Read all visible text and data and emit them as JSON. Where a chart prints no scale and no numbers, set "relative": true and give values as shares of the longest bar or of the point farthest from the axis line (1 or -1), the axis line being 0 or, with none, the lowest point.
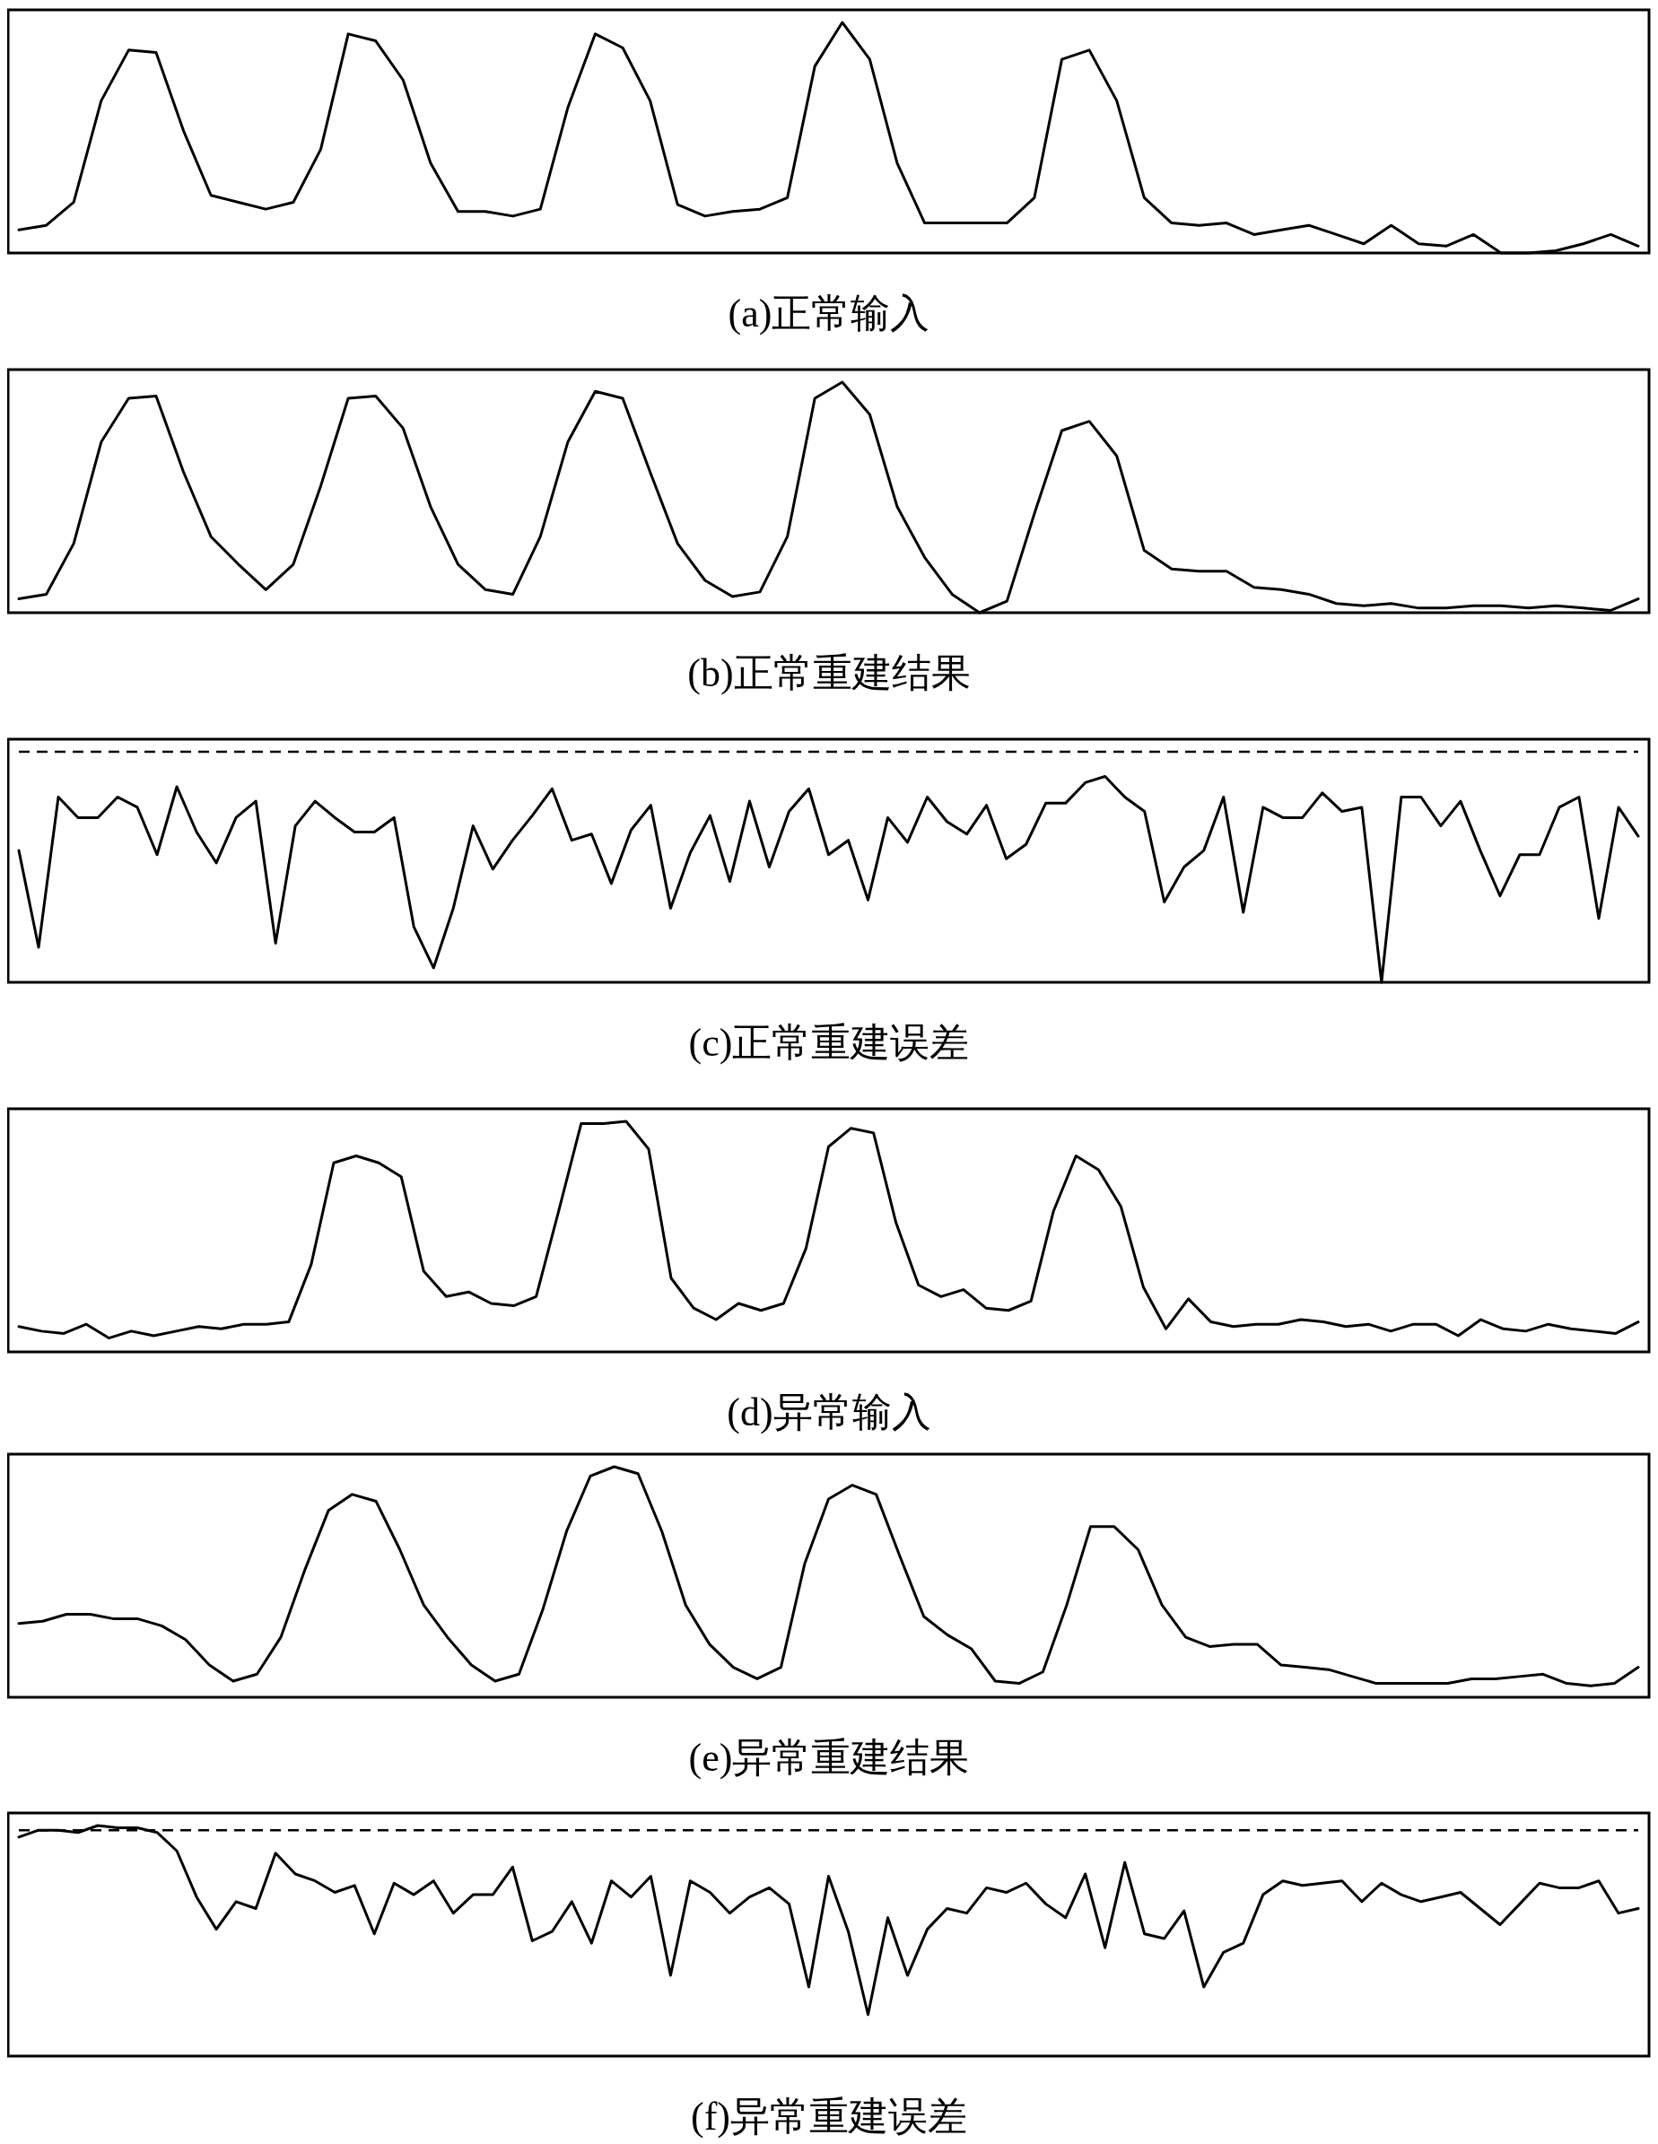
{
  "chart_data": [
    {
      "type": "line",
      "xlabel": "(a)正常输入",
      "relative": true,
      "tick_labels": false,
      "line_style": "solid",
      "categories": [
        null,
        null,
        null,
        null,
        null,
        null,
        null,
        null,
        null,
        null,
        null,
        null,
        null,
        null,
        null,
        null,
        null,
        null,
        null,
        null,
        null,
        null,
        null,
        null,
        null,
        null,
        null,
        null,
        null,
        null,
        null,
        null,
        null,
        null,
        null,
        null,
        null,
        null,
        null,
        null,
        null,
        null,
        null,
        null,
        null,
        null,
        null,
        null,
        null,
        null,
        null,
        null,
        null,
        null,
        null,
        null,
        null,
        null,
        null,
        null
      ],
      "series": [
        {
          "color": "#000000",
          "values": [
            0.1,
            0.12,
            0.22,
            0.66,
            0.88,
            0.87,
            0.53,
            0.25,
            0.22,
            0.19,
            0.22,
            0.45,
            0.95,
            0.92,
            0.75,
            0.39,
            0.18,
            0.18,
            0.16,
            0.19,
            0.63,
            0.95,
            0.89,
            0.66,
            0.21,
            0.16,
            0.18,
            0.19,
            0.24,
            0.81,
            1,
            0.84,
            0.39,
            0.13,
            0.13,
            0.13,
            0.13,
            0.24,
            0.84,
            0.88,
            0.66,
            0.24,
            0.13,
            0.12,
            0.13,
            0.08,
            0.1,
            0.12,
            0.08,
            0.04,
            0.12,
            0.04,
            0.03,
            0.08,
            0,
            0,
            0.01,
            0.04,
            0.08,
            0.03
          ]
        }
      ]
    },
    {
      "type": "line",
      "xlabel": "(b)正常重建结果",
      "relative": true,
      "tick_labels": false,
      "line_style": "solid",
      "categories": [
        null,
        null,
        null,
        null,
        null,
        null,
        null,
        null,
        null,
        null,
        null,
        null,
        null,
        null,
        null,
        null,
        null,
        null,
        null,
        null,
        null,
        null,
        null,
        null,
        null,
        null,
        null,
        null,
        null,
        null,
        null,
        null,
        null,
        null,
        null,
        null,
        null,
        null,
        null,
        null,
        null,
        null,
        null,
        null,
        null,
        null,
        null,
        null,
        null,
        null,
        null,
        null,
        null,
        null,
        null,
        null,
        null,
        null,
        null,
        null
      ],
      "series": [
        {
          "color": "#000000",
          "values": [
            0.06,
            0.08,
            0.3,
            0.74,
            0.93,
            0.94,
            0.61,
            0.33,
            0.21,
            0.1,
            0.21,
            0.55,
            0.93,
            0.94,
            0.8,
            0.46,
            0.21,
            0.1,
            0.08,
            0.33,
            0.74,
            0.96,
            0.93,
            0.61,
            0.3,
            0.14,
            0.07,
            0.09,
            0.33,
            0.93,
            1,
            0.86,
            0.46,
            0.24,
            0.08,
            0,
            0.05,
            0.43,
            0.79,
            0.83,
            0.68,
            0.27,
            0.19,
            0.18,
            0.18,
            0.11,
            0.1,
            0.08,
            0.04,
            0.03,
            0.04,
            0.02,
            0.02,
            0.03,
            0.03,
            0.02,
            0.03,
            0.02,
            0.01,
            0.06
          ]
        }
      ]
    },
    {
      "type": "line",
      "xlabel": "(c)正常重建误差",
      "relative": true,
      "tick_labels": false,
      "line_style": "solid",
      "ref_lines": [
        {
          "axis": "y",
          "value": 1.12,
          "line_style": "dashed",
          "color": "#000000"
        }
      ],
      "categories": [
        null,
        null,
        null,
        null,
        null,
        null,
        null,
        null,
        null,
        null,
        null,
        null,
        null,
        null,
        null,
        null,
        null,
        null,
        null,
        null,
        null,
        null,
        null,
        null,
        null,
        null,
        null,
        null,
        null,
        null,
        null,
        null,
        null,
        null,
        null,
        null,
        null,
        null,
        null,
        null,
        null,
        null,
        null,
        null,
        null,
        null,
        null,
        null,
        null,
        null,
        null,
        null,
        null,
        null,
        null,
        null,
        null,
        null,
        null,
        null,
        null,
        null,
        null,
        null,
        null,
        null,
        null,
        null,
        null,
        null,
        null,
        null,
        null,
        null,
        null,
        null,
        null,
        null,
        null,
        null,
        null,
        null,
        null
      ],
      "series": [
        {
          "color": "#000000",
          "values": [
            0.64,
            0.17,
            0.9,
            0.8,
            0.8,
            0.9,
            0.85,
            0.62,
            0.95,
            0.73,
            0.58,
            0.8,
            0.88,
            0.19,
            0.76,
            0.88,
            0.8,
            0.73,
            0.73,
            0.8,
            0.27,
            0.07,
            0.36,
            0.76,
            0.55,
            0.69,
            0.81,
            0.94,
            0.69,
            0.72,
            0.48,
            0.74,
            0.86,
            0.36,
            0.63,
            0.81,
            0.49,
            0.88,
            0.56,
            0.83,
            0.94,
            0.62,
            0.69,
            0.4,
            0.8,
            0.68,
            0.9,
            0.78,
            0.72,
            0.86,
            0.6,
            0.67,
            0.87,
            0.87,
            0.97,
            1,
            0.9,
            0.83,
            0.39,
            0.56,
            0.64,
            0.9,
            0.34,
            0.85,
            0.8,
            0.8,
            0.92,
            0.83,
            0.85,
            0,
            0.9,
            0.9,
            0.76,
            0.88,
            0.64,
            0.42,
            0.62,
            0.62,
            0.85,
            0.9,
            0.31,
            0.85,
            0.71
          ]
        }
      ]
    },
    {
      "type": "line",
      "xlabel": "(d)异常输入",
      "relative": true,
      "tick_labels": false,
      "line_style": "solid",
      "categories": [
        null,
        null,
        null,
        null,
        null,
        null,
        null,
        null,
        null,
        null,
        null,
        null,
        null,
        null,
        null,
        null,
        null,
        null,
        null,
        null,
        null,
        null,
        null,
        null,
        null,
        null,
        null,
        null,
        null,
        null,
        null,
        null,
        null,
        null,
        null,
        null,
        null,
        null,
        null,
        null,
        null,
        null,
        null,
        null,
        null,
        null,
        null,
        null,
        null,
        null,
        null,
        null,
        null,
        null,
        null,
        null,
        null,
        null,
        null,
        null,
        null,
        null,
        null,
        null,
        null,
        null,
        null,
        null,
        null,
        null,
        null,
        null,
        null
      ],
      "series": [
        {
          "color": "#000000",
          "values": [
            0.11,
            0.09,
            0.08,
            0.12,
            0.06,
            0.09,
            0.07,
            0.09,
            0.11,
            0.1,
            0.12,
            0.12,
            0.13,
            0.38,
            0.82,
            0.85,
            0.82,
            0.76,
            0.35,
            0.24,
            0.26,
            0.21,
            0.2,
            0.24,
            0.61,
            0.99,
            0.99,
            1,
            0.88,
            0.32,
            0.19,
            0.14,
            0.21,
            0.18,
            0.21,
            0.45,
            0.89,
            0.97,
            0.95,
            0.56,
            0.29,
            0.24,
            0.27,
            0.19,
            0.18,
            0.22,
            0.61,
            0.85,
            0.79,
            0.63,
            0.28,
            0.1,
            0.23,
            0.13,
            0.11,
            0.12,
            0.12,
            0.14,
            0.13,
            0.11,
            0.12,
            0.09,
            0.12,
            0.12,
            0.07,
            0.14,
            0.1,
            0.09,
            0.12,
            0.1,
            0.09,
            0.08,
            0.13
          ]
        }
      ]
    },
    {
      "type": "line",
      "xlabel": "(e)异常重建结果",
      "relative": true,
      "tick_labels": false,
      "line_style": "solid",
      "categories": [
        null,
        null,
        null,
        null,
        null,
        null,
        null,
        null,
        null,
        null,
        null,
        null,
        null,
        null,
        null,
        null,
        null,
        null,
        null,
        null,
        null,
        null,
        null,
        null,
        null,
        null,
        null,
        null,
        null,
        null,
        null,
        null,
        null,
        null,
        null,
        null,
        null,
        null,
        null,
        null,
        null,
        null,
        null,
        null,
        null,
        null,
        null,
        null,
        null,
        null,
        null,
        null,
        null,
        null,
        null,
        null,
        null,
        null,
        null,
        null,
        null,
        null,
        null,
        null,
        null,
        null,
        null,
        null,
        null
      ],
      "series": [
        {
          "color": "#000000",
          "values": [
            0.32,
            0.33,
            0.36,
            0.36,
            0.34,
            0.34,
            0.31,
            0.25,
            0.14,
            0.07,
            0.1,
            0.26,
            0.55,
            0.81,
            0.88,
            0.85,
            0.64,
            0.4,
            0.26,
            0.14,
            0.07,
            0.1,
            0.38,
            0.72,
            0.96,
            1,
            0.97,
            0.72,
            0.4,
            0.23,
            0.13,
            0.08,
            0.13,
            0.58,
            0.86,
            0.92,
            0.88,
            0.61,
            0.35,
            0.27,
            0.21,
            0.07,
            0.06,
            0.11,
            0.4,
            0.74,
            0.74,
            0.64,
            0.4,
            0.26,
            0.22,
            0.23,
            0.23,
            0.14,
            0.13,
            0.12,
            0.09,
            0.06,
            0.06,
            0.06,
            0.06,
            0.08,
            0.08,
            0.09,
            0.1,
            0.06,
            0.05,
            0.06,
            0.13
          ]
        }
      ]
    },
    {
      "type": "line",
      "xlabel": "(f)异常重建误差",
      "relative": true,
      "tick_labels": false,
      "line_style": "solid",
      "ref_lines": [
        {
          "axis": "y",
          "value": 0.98,
          "line_style": "dashed",
          "color": "#000000"
        }
      ],
      "categories": [
        null,
        null,
        null,
        null,
        null,
        null,
        null,
        null,
        null,
        null,
        null,
        null,
        null,
        null,
        null,
        null,
        null,
        null,
        null,
        null,
        null,
        null,
        null,
        null,
        null,
        null,
        null,
        null,
        null,
        null,
        null,
        null,
        null,
        null,
        null,
        null,
        null,
        null,
        null,
        null,
        null,
        null,
        null,
        null,
        null,
        null,
        null,
        null,
        null,
        null,
        null,
        null,
        null,
        null,
        null,
        null,
        null,
        null,
        null,
        null,
        null,
        null,
        null,
        null,
        null,
        null,
        null,
        null,
        null,
        null,
        null,
        null,
        null,
        null,
        null,
        null,
        null,
        null,
        null,
        null,
        null,
        null,
        null
      ],
      "series": [
        {
          "color": "#000000",
          "values": [
            0.95,
            0.98,
            0.98,
            0.97,
            1,
            0.99,
            0.99,
            0.97,
            0.89,
            0.69,
            0.55,
            0.67,
            0.64,
            0.88,
            0.79,
            0.76,
            0.71,
            0.74,
            0.53,
            0.75,
            0.7,
            0.76,
            0.62,
            0.7,
            0.7,
            0.82,
            0.5,
            0.54,
            0.67,
            0.49,
            0.76,
            0.69,
            0.78,
            0.35,
            0.76,
            0.71,
            0.62,
            0.69,
            0.73,
            0.66,
            0.3,
            0.78,
            0.54,
            0.18,
            0.6,
            0.35,
            0.55,
            0.64,
            0.62,
            0.73,
            0.71,
            0.75,
            0.66,
            0.6,
            0.79,
            0.47,
            0.84,
            0.53,
            0.51,
            0.63,
            0.3,
            0.45,
            0.49,
            0.7,
            0.76,
            0.74,
            0.75,
            0.76,
            0.67,
            0.75,
            0.7,
            0.67,
            0.69,
            0.71,
            0.64,
            0.57,
            0.66,
            0.75,
            0.73,
            0.73,
            0.76,
            0.62,
            0.64
          ]
        }
      ]
    }
  ]
}
